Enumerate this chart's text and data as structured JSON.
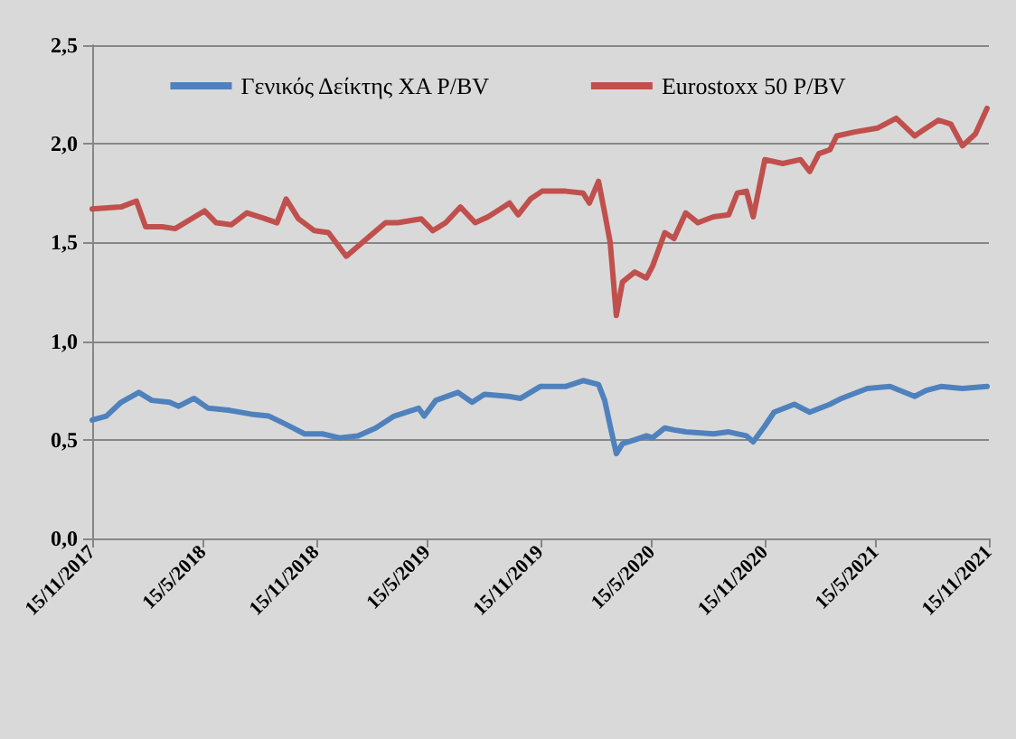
{
  "chart_data": {
    "type": "line",
    "legend": "top",
    "grid": "y",
    "marker": "none",
    "line_style": "solid",
    "xlim": [
      "2017-11-15",
      "2021-11-15"
    ],
    "xticks": [
      {
        "value": "2017-11-15",
        "label": "15/11/2017"
      },
      {
        "value": "2018-05-15",
        "label": "15/5/2018"
      },
      {
        "value": "2018-11-15",
        "label": "15/11/2018"
      },
      {
        "value": "2019-05-15",
        "label": "15/5/2019"
      },
      {
        "value": "2019-11-15",
        "label": "15/11/2019"
      },
      {
        "value": "2020-05-15",
        "label": "15/5/2020"
      },
      {
        "value": "2020-11-15",
        "label": "15/11/2020"
      },
      {
        "value": "2021-05-15",
        "label": "15/5/2021"
      },
      {
        "value": "2021-11-15",
        "label": "15/11/2021"
      }
    ],
    "ylim": [
      0,
      2.5
    ],
    "yticks": [
      {
        "value": 0,
        "label": "0,0"
      },
      {
        "value": 0.5,
        "label": "0,5"
      },
      {
        "value": 1,
        "label": "1,0"
      },
      {
        "value": 1.5,
        "label": "1,5"
      },
      {
        "value": 2,
        "label": "2,0"
      },
      {
        "value": 2.5,
        "label": "2,5"
      }
    ],
    "series": [
      {
        "name": "Γενικός Δείκτης ΧΑ P/BV",
        "color": "#4f81bd",
        "x": [
          "2017-11-15",
          "2017-12-08",
          "2018-01-01",
          "2018-01-30",
          "2018-02-20",
          "2018-03-21",
          "2018-04-05",
          "2018-04-30",
          "2018-05-23",
          "2018-06-25",
          "2018-08-01",
          "2018-08-30",
          "2018-09-19",
          "2018-10-08",
          "2018-10-27",
          "2018-11-25",
          "2018-12-23",
          "2019-01-22",
          "2019-02-20",
          "2019-03-22",
          "2019-05-01",
          "2019-05-10",
          "2019-05-29",
          "2019-07-04",
          "2019-07-27",
          "2019-08-16",
          "2019-09-25",
          "2019-10-14",
          "2019-11-15",
          "2019-12-26",
          "2020-01-24",
          "2020-02-18",
          "2020-02-28",
          "2020-03-08",
          "2020-03-18",
          "2020-03-28",
          "2020-04-17",
          "2020-05-06",
          "2020-05-16",
          "2020-06-05",
          "2020-06-20",
          "2020-07-09",
          "2020-08-23",
          "2020-09-17",
          "2020-10-16",
          "2020-10-27",
          "2020-11-15",
          "2020-11-30",
          "2021-01-02",
          "2021-01-27",
          "2021-03-01",
          "2021-03-20",
          "2021-05-01",
          "2021-06-07",
          "2021-07-17",
          "2021-08-05",
          "2021-08-29",
          "2021-10-03",
          "2021-11-12"
        ],
        "values": [
          0.6,
          0.62,
          0.69,
          0.74,
          0.7,
          0.69,
          0.67,
          0.71,
          0.66,
          0.65,
          0.63,
          0.62,
          0.59,
          0.56,
          0.53,
          0.53,
          0.51,
          0.52,
          0.56,
          0.62,
          0.66,
          0.62,
          0.7,
          0.74,
          0.69,
          0.73,
          0.72,
          0.71,
          0.77,
          0.77,
          0.8,
          0.78,
          0.7,
          0.57,
          0.43,
          0.48,
          0.5,
          0.52,
          0.51,
          0.56,
          0.55,
          0.54,
          0.53,
          0.54,
          0.52,
          0.49,
          0.57,
          0.64,
          0.68,
          0.64,
          0.68,
          0.71,
          0.76,
          0.77,
          0.72,
          0.75,
          0.77,
          0.76,
          0.77
        ]
      },
      {
        "name": "Eurostoxx 50 P/BV",
        "color": "#c0504d",
        "x": [
          "2017-11-15",
          "2018-01-01",
          "2018-01-26",
          "2018-02-10",
          "2018-03-09",
          "2018-03-30",
          "2018-05-17",
          "2018-06-05",
          "2018-06-30",
          "2018-07-25",
          "2018-08-24",
          "2018-09-12",
          "2018-09-27",
          "2018-10-17",
          "2018-11-12",
          "2018-12-05",
          "2019-01-03",
          "2019-01-29",
          "2019-03-08",
          "2019-03-28",
          "2019-05-05",
          "2019-05-24",
          "2019-06-14",
          "2019-07-08",
          "2019-08-01",
          "2019-08-22",
          "2019-09-26",
          "2019-10-10",
          "2019-10-30",
          "2019-11-18",
          "2019-12-26",
          "2020-01-24",
          "2020-02-03",
          "2020-02-18",
          "2020-02-28",
          "2020-03-08",
          "2020-03-18",
          "2020-03-28",
          "2020-04-17",
          "2020-05-06",
          "2020-05-16",
          "2020-06-05",
          "2020-06-20",
          "2020-07-09",
          "2020-07-29",
          "2020-08-23",
          "2020-09-17",
          "2020-10-01",
          "2020-10-16",
          "2020-10-27",
          "2020-11-15",
          "2020-12-14",
          "2021-01-12",
          "2021-01-27",
          "2021-02-11",
          "2021-03-01",
          "2021-03-12",
          "2021-04-10",
          "2021-05-18",
          "2021-06-17",
          "2021-07-17",
          "2021-08-05",
          "2021-08-25",
          "2021-09-14",
          "2021-10-03",
          "2021-10-24",
          "2021-11-12"
        ],
        "values": [
          1.67,
          1.68,
          1.71,
          1.58,
          1.58,
          1.57,
          1.66,
          1.6,
          1.59,
          1.65,
          1.62,
          1.6,
          1.72,
          1.62,
          1.56,
          1.55,
          1.43,
          1.5,
          1.6,
          1.6,
          1.62,
          1.56,
          1.6,
          1.68,
          1.6,
          1.63,
          1.7,
          1.64,
          1.72,
          1.76,
          1.76,
          1.75,
          1.7,
          1.81,
          1.65,
          1.5,
          1.13,
          1.3,
          1.35,
          1.32,
          1.38,
          1.55,
          1.52,
          1.65,
          1.6,
          1.63,
          1.64,
          1.75,
          1.76,
          1.63,
          1.92,
          1.9,
          1.92,
          1.86,
          1.95,
          1.97,
          2.04,
          2.06,
          2.08,
          2.13,
          2.04,
          2.08,
          2.12,
          2.1,
          1.99,
          2.05,
          2.18
        ]
      }
    ]
  }
}
